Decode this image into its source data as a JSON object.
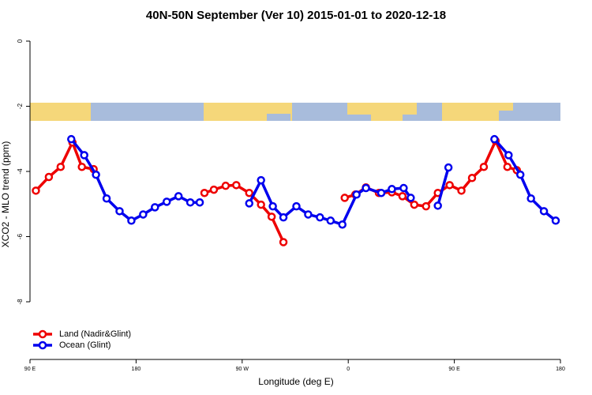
{
  "chart_data": {
    "type": "line",
    "title": "40N-50N September (Ver 10)   2015-01-01 to 2020-12-18",
    "xlabel": "Longitude (deg E)",
    "ylabel": "XCO2 - MLO trend (ppm)",
    "xlim": [
      90,
      540
    ],
    "xticks": [
      {
        "value": 90,
        "label": "90 E"
      },
      180,
      {
        "value": 270,
        "label": "90 W"
      },
      {
        "value": 360,
        "label": "0"
      },
      {
        "value": 450,
        "label": "90 E"
      },
      {
        "value": 540,
        "label": "180"
      }
    ],
    "ylim": [
      -9.77,
      0.34
    ],
    "yticks": [
      0,
      -2,
      -4,
      -6,
      -8
    ],
    "legend": "bottom-left",
    "series": [
      {
        "name": "Land (Nadir&Glint)",
        "color": "#ee0000",
        "x": [
          95,
          106,
          116,
          126,
          134,
          144,
          null,
          238,
          246,
          256,
          265,
          276,
          286,
          295,
          305,
          null,
          357,
          366,
          375,
          386,
          397,
          406,
          416,
          426,
          436,
          446,
          456,
          465,
          475,
          485,
          495,
          503
        ],
        "values": [
          -4.59,
          -4.17,
          -3.86,
          -3.11,
          -3.86,
          -3.93,
          null,
          -4.66,
          -4.56,
          -4.44,
          -4.42,
          -4.66,
          -5.02,
          -5.39,
          -6.17,
          null,
          -4.81,
          -4.71,
          -4.49,
          -4.66,
          -4.64,
          -4.76,
          -5.02,
          -5.07,
          -4.66,
          -4.42,
          -4.59,
          -4.2,
          -3.86,
          -3.06,
          -3.86,
          -3.96
        ]
      },
      {
        "name": "Ocean (Glint)",
        "color": "#0000ee",
        "x": [
          125,
          136,
          146,
          155,
          166,
          176,
          186,
          196,
          206,
          216,
          226,
          234,
          null,
          276,
          286,
          296,
          305,
          316,
          326,
          336,
          345,
          355,
          367,
          375,
          388,
          397,
          407,
          413,
          null,
          436,
          445,
          null,
          484,
          496,
          506,
          515,
          526,
          536
        ],
        "values": [
          -3.01,
          -3.5,
          -4.1,
          -4.83,
          -5.22,
          -5.51,
          -5.32,
          -5.1,
          -4.93,
          -4.76,
          -4.95,
          -4.95,
          null,
          -4.98,
          -4.27,
          -5.07,
          -5.41,
          -5.07,
          -5.32,
          -5.41,
          -5.51,
          -5.63,
          -4.71,
          -4.51,
          -4.66,
          -4.54,
          -4.51,
          -4.81,
          null,
          -5.05,
          -3.88,
          null,
          -3.01,
          -3.5,
          -4.1,
          -4.83,
          -5.22,
          -5.51
        ]
      }
    ]
  }
}
